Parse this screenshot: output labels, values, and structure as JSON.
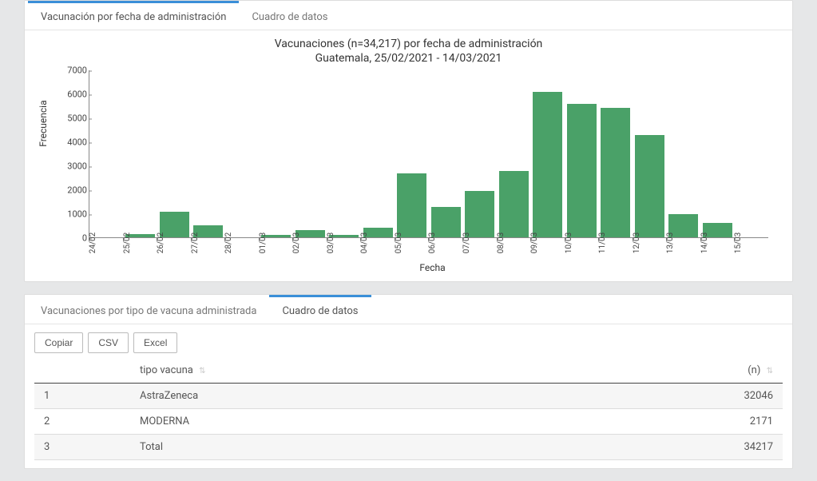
{
  "chart_panel": {
    "tabs": [
      {
        "label": "Vacunación por fecha de administración",
        "active": true
      },
      {
        "label": "Cuadro de datos",
        "active": false
      }
    ],
    "chart": {
      "type": "bar",
      "title_line1": "Vacunaciones (n=34,217) por fecha de administración",
      "title_line2": "Guatemala, 25/02/2021 - 14/03/2021",
      "y_label": "Frecuencia",
      "x_label": "Fecha",
      "y_max": 7000,
      "y_ticks": [
        0,
        1000,
        2000,
        3000,
        4000,
        5000,
        6000,
        7000
      ],
      "x_categories": [
        "24/02",
        "25/02",
        "26/02",
        "27/02",
        "28/02",
        "01/03",
        "02/03",
        "03/03",
        "04/03",
        "05/03",
        "06/03",
        "07/03",
        "08/03",
        "09/03",
        "10/03",
        "11/03",
        "12/03",
        "13/03",
        "14/03",
        "15/03"
      ],
      "values": [
        0,
        150,
        1100,
        500,
        0,
        120,
        300,
        100,
        400,
        2700,
        1300,
        1950,
        2800,
        6100,
        5600,
        5450,
        4300,
        1000,
        600,
        0
      ],
      "bar_color": "#4aa168",
      "axis_color": "#888888",
      "title_fontsize": 14,
      "label_fontsize": 12,
      "tick_fontsize": 10,
      "background_color": "#ffffff"
    }
  },
  "table_panel": {
    "tabs": [
      {
        "label": "Vacunaciones por tipo de vacuna administrada",
        "active": false
      },
      {
        "label": "Cuadro de datos",
        "active": true
      }
    ],
    "buttons": {
      "copy": "Copiar",
      "csv": "CSV",
      "excel": "Excel"
    },
    "columns": {
      "idx": "",
      "type": "tipo vacuna",
      "n": "(n)"
    },
    "rows": [
      {
        "idx": "1",
        "type": "AstraZeneca",
        "n": "32046"
      },
      {
        "idx": "2",
        "type": "MODERNA",
        "n": "2171"
      },
      {
        "idx": "3",
        "type": "Total",
        "n": "34217"
      }
    ]
  },
  "colors": {
    "page_bg": "#e6e7e8",
    "panel_bg": "#ffffff",
    "panel_border": "#dddddd",
    "tab_active": "#3a8fd8",
    "text": "#555555",
    "row_alt": "#f6f6f6",
    "table_header_border": "#444444"
  }
}
